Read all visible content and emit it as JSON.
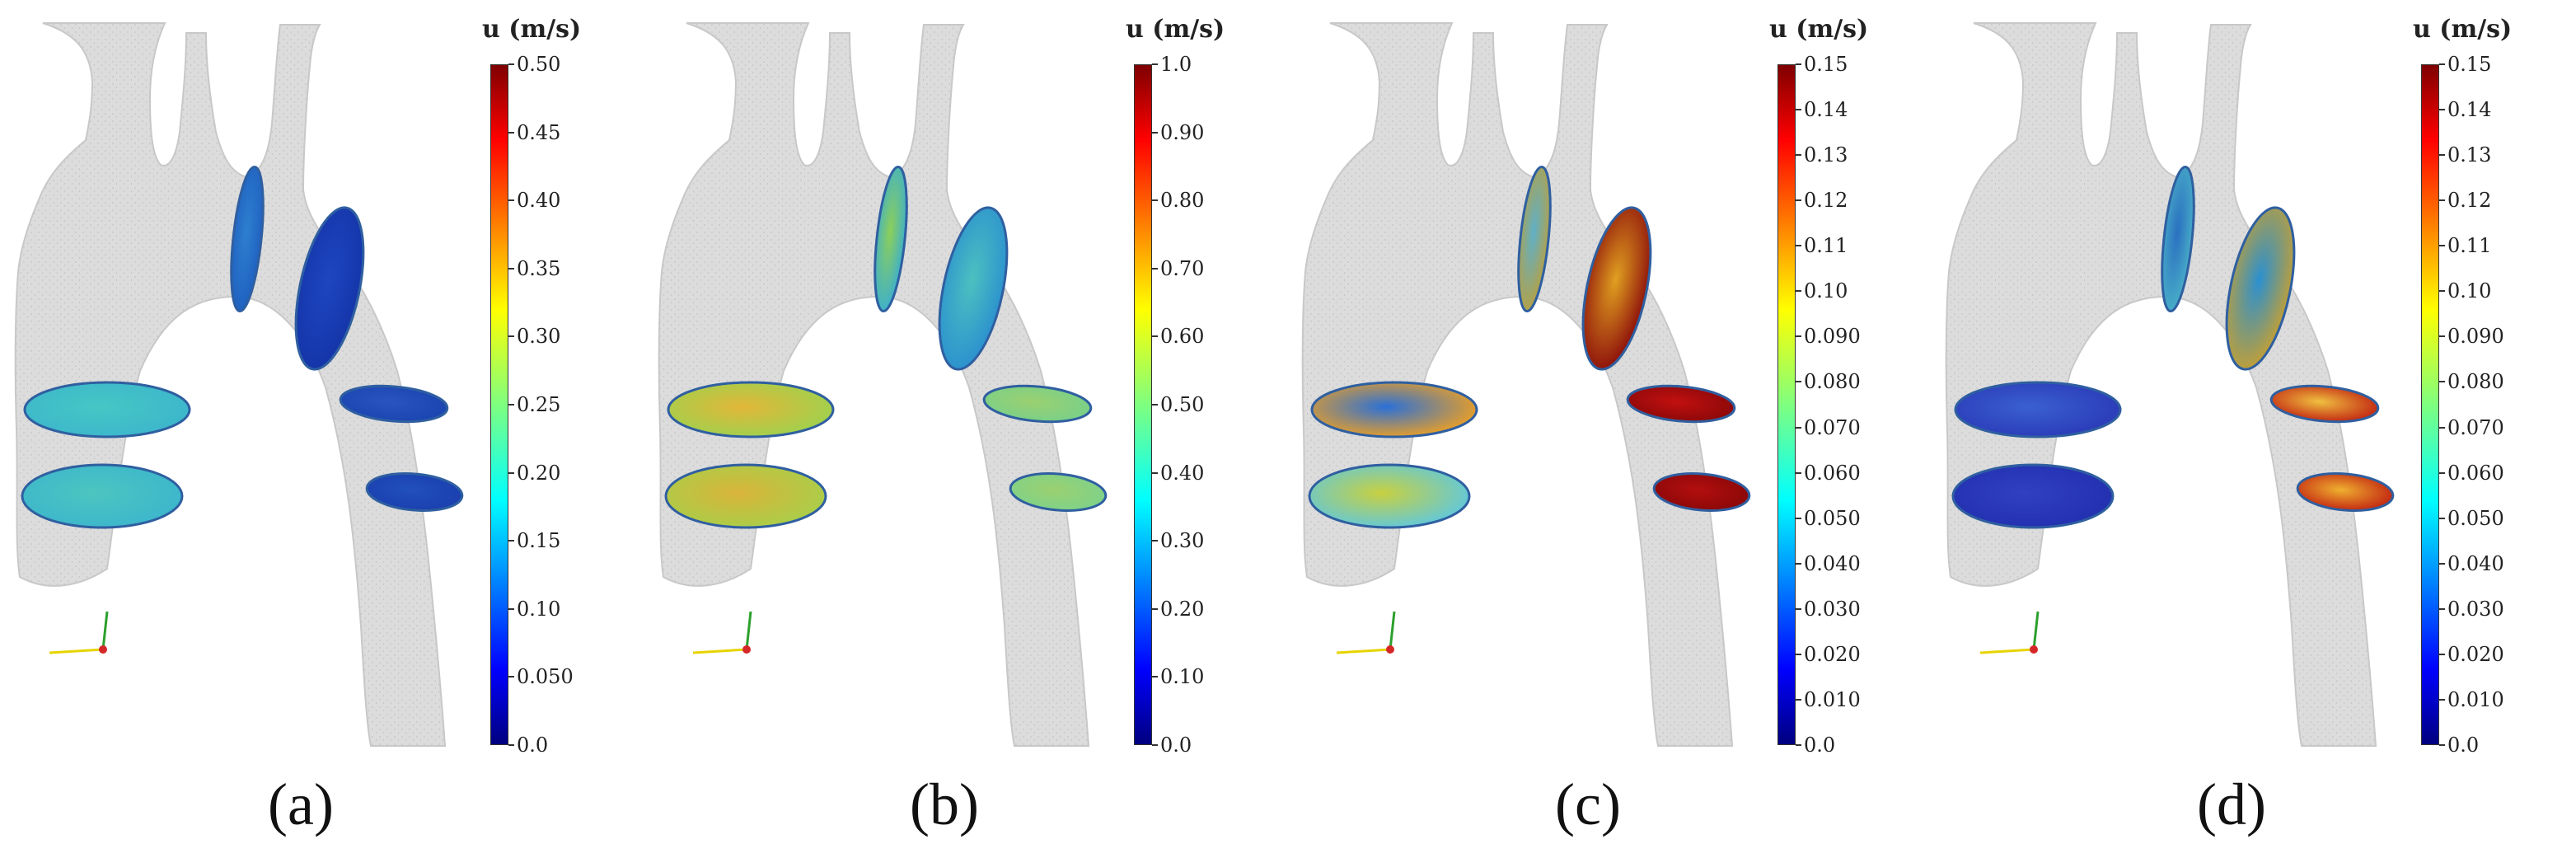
{
  "colors": {
    "vessel_fill": "#dcdcdc",
    "vessel_edge": "#c8c8c8",
    "jet_low": "#00007f",
    "jet_high": "#7f0000"
  },
  "panels": [
    {
      "caption": "(a)",
      "colorbar_title": "u (m/s)",
      "ticks": [
        "0.50",
        "0.45",
        "0.40",
        "0.35",
        "0.30",
        "0.25",
        "0.20",
        "0.15",
        "0.10",
        "0.050",
        "0.0"
      ],
      "slice_colors": [
        "#1f5fbf",
        "#1434a8",
        "#3cb6cc",
        "#3cb6cc",
        "#1a44b0",
        "#1a3fae"
      ],
      "slice_inner": [
        "#2d7fd0",
        "#1e46c0",
        "#46c7c4",
        "#4cc5c0",
        "#2a55c0",
        "#2150bc"
      ]
    },
    {
      "caption": "(b)",
      "colorbar_title": "u (m/s)",
      "ticks": [
        "1.0",
        "0.90",
        "0.80",
        "0.70",
        "0.60",
        "0.50",
        "0.40",
        "0.30",
        "0.20",
        "0.10",
        "0.0"
      ],
      "slice_colors": [
        "#3aaed0",
        "#2a8fcf",
        "#9dd24e",
        "#a8cf4a",
        "#78d08a",
        "#7ed28a"
      ],
      "slice_inner": [
        "#8ccf5a",
        "#4cc0c0",
        "#e2b638",
        "#d9b43a",
        "#9bd070",
        "#9bd070"
      ]
    },
    {
      "caption": "(c)",
      "colorbar_title": "u (m/s)",
      "ticks": [
        "0.15",
        "0.14",
        "0.13",
        "0.12",
        "0.11",
        "0.10",
        "0.090",
        "0.080",
        "0.070",
        "0.060",
        "0.050",
        "0.040",
        "0.030",
        "0.020",
        "0.010",
        "0.0"
      ],
      "slice_colors": [
        "#b8a040",
        "#8a0a0a",
        "#f0a020",
        "#5ec8e0",
        "#8a0808",
        "#8a0808"
      ],
      "slice_inner": [
        "#5fb0c8",
        "#e0a020",
        "#2a70d8",
        "#c8d040",
        "#c21010",
        "#b30e0e"
      ]
    },
    {
      "caption": "(d)",
      "colorbar_title": "u (m/s)",
      "ticks": [
        "0.15",
        "0.14",
        "0.13",
        "0.12",
        "0.11",
        "0.10",
        "0.090",
        "0.080",
        "0.070",
        "0.060",
        "0.050",
        "0.040",
        "0.030",
        "0.020",
        "0.010",
        "0.0"
      ],
      "slice_colors": [
        "#4ab0c8",
        "#c8a030",
        "#2a3ab8",
        "#2230b0",
        "#c02010",
        "#c02010"
      ],
      "slice_inner": [
        "#2a70c0",
        "#2a90d0",
        "#3a60d0",
        "#3040c0",
        "#f0c040",
        "#f0b030"
      ]
    }
  ]
}
